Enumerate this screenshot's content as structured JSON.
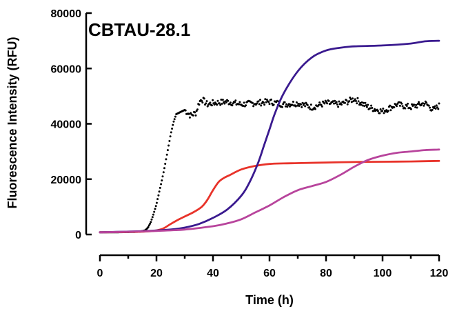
{
  "chart_data": {
    "type": "line",
    "title": "CBTAU-28.1",
    "xlabel": "Time (h)",
    "ylabel": "Fluorescence Intensity (RFU)",
    "xlim": [
      0,
      120
    ],
    "ylim": [
      0,
      80000
    ],
    "x_ticks": [
      "0",
      "20",
      "40",
      "60",
      "80",
      "100",
      "120"
    ],
    "y_ticks": [
      "0",
      "20000",
      "40000",
      "60000",
      "80000"
    ],
    "grid": false,
    "legend": "none",
    "series": [
      {
        "style": "dots",
        "color": "#000000",
        "points": [
          [
            0,
            800
          ],
          [
            5,
            800
          ],
          [
            10,
            900
          ],
          [
            14,
            1000
          ],
          [
            16,
            1500
          ],
          [
            17,
            2500
          ],
          [
            18,
            4500
          ],
          [
            19,
            7500
          ],
          [
            20,
            11000
          ],
          [
            21,
            15500
          ],
          [
            22,
            20000
          ],
          [
            23,
            25000
          ],
          [
            24,
            30500
          ],
          [
            25,
            36000
          ],
          [
            26,
            40500
          ],
          [
            27,
            43500
          ],
          [
            28,
            44000
          ],
          [
            30,
            45000
          ],
          [
            32,
            43000
          ],
          [
            34,
            44000
          ],
          [
            35,
            47500
          ],
          [
            36,
            49000
          ],
          [
            38,
            47000
          ],
          [
            40,
            47500
          ],
          [
            45,
            48000
          ],
          [
            50,
            47000
          ],
          [
            55,
            47500
          ],
          [
            60,
            48000
          ],
          [
            65,
            47000
          ],
          [
            70,
            47500
          ],
          [
            75,
            46000
          ],
          [
            80,
            47500
          ],
          [
            85,
            47000
          ],
          [
            90,
            49000
          ],
          [
            95,
            46000
          ],
          [
            100,
            44500
          ],
          [
            105,
            47000
          ],
          [
            110,
            46000
          ],
          [
            115,
            47500
          ],
          [
            118,
            45000
          ],
          [
            120,
            46500
          ]
        ]
      },
      {
        "style": "line",
        "color": "#e8332a",
        "points": [
          [
            0,
            800
          ],
          [
            10,
            900
          ],
          [
            18,
            1200
          ],
          [
            22,
            2000
          ],
          [
            25,
            3800
          ],
          [
            28,
            5500
          ],
          [
            30,
            6500
          ],
          [
            33,
            8000
          ],
          [
            36,
            10000
          ],
          [
            38,
            12500
          ],
          [
            40,
            16000
          ],
          [
            42,
            19000
          ],
          [
            44,
            20500
          ],
          [
            46,
            21500
          ],
          [
            50,
            23500
          ],
          [
            55,
            24800
          ],
          [
            60,
            25500
          ],
          [
            65,
            25700
          ],
          [
            70,
            25800
          ],
          [
            80,
            26000
          ],
          [
            90,
            26200
          ],
          [
            100,
            26300
          ],
          [
            110,
            26400
          ],
          [
            120,
            26600
          ]
        ]
      },
      {
        "style": "line",
        "color": "#3a1a8f",
        "points": [
          [
            0,
            800
          ],
          [
            15,
            1200
          ],
          [
            25,
            1800
          ],
          [
            30,
            2500
          ],
          [
            35,
            3800
          ],
          [
            40,
            6000
          ],
          [
            45,
            9000
          ],
          [
            50,
            14000
          ],
          [
            53,
            19000
          ],
          [
            56,
            26000
          ],
          [
            58,
            32000
          ],
          [
            60,
            38000
          ],
          [
            62,
            44000
          ],
          [
            65,
            51000
          ],
          [
            70,
            59000
          ],
          [
            75,
            64000
          ],
          [
            80,
            66500
          ],
          [
            85,
            67500
          ],
          [
            90,
            68000
          ],
          [
            100,
            68300
          ],
          [
            110,
            69000
          ],
          [
            115,
            69800
          ],
          [
            120,
            70000
          ]
        ]
      },
      {
        "style": "line",
        "color": "#b8449c",
        "points": [
          [
            0,
            800
          ],
          [
            10,
            1000
          ],
          [
            20,
            1300
          ],
          [
            30,
            1800
          ],
          [
            40,
            3000
          ],
          [
            45,
            4000
          ],
          [
            50,
            5500
          ],
          [
            55,
            8000
          ],
          [
            60,
            10500
          ],
          [
            65,
            13500
          ],
          [
            70,
            16000
          ],
          [
            75,
            17500
          ],
          [
            80,
            19000
          ],
          [
            85,
            21500
          ],
          [
            90,
            24500
          ],
          [
            95,
            27000
          ],
          [
            100,
            28500
          ],
          [
            105,
            29500
          ],
          [
            110,
            30000
          ],
          [
            115,
            30500
          ],
          [
            120,
            30700
          ]
        ]
      }
    ]
  }
}
